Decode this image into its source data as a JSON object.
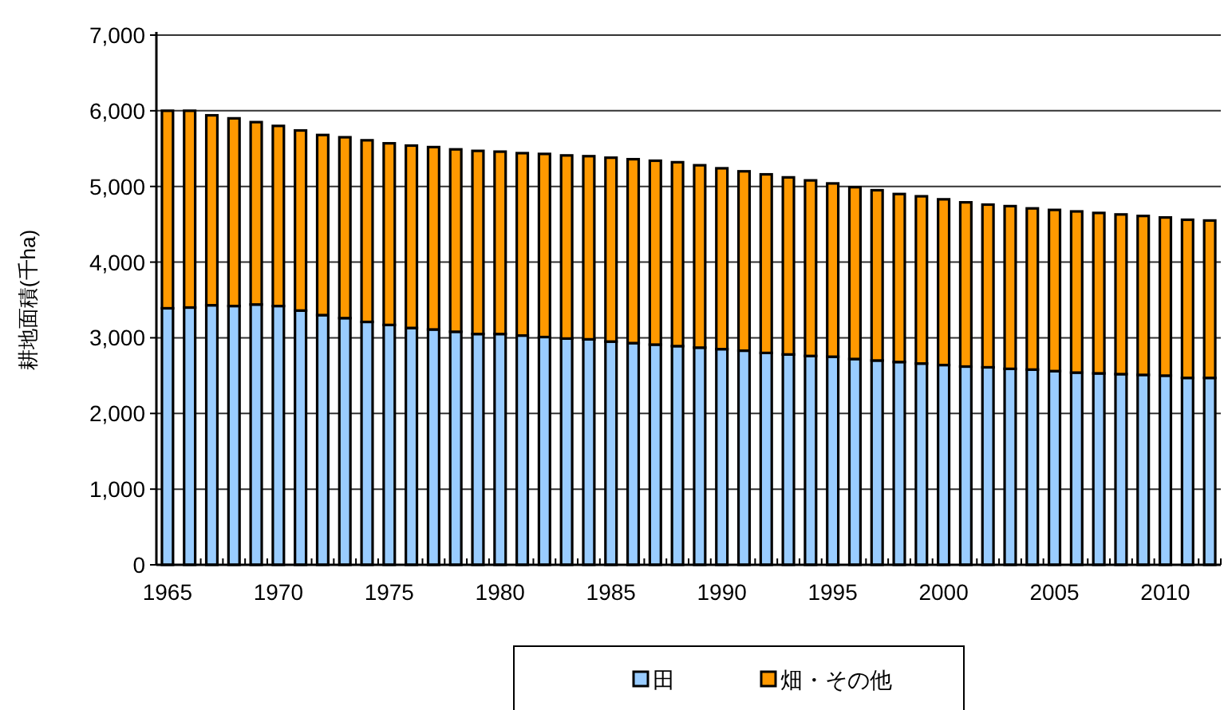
{
  "chart_data": {
    "type": "bar",
    "stacked": true,
    "ylabel": "耕地面積(千ha)",
    "categories": [
      "1965",
      null,
      null,
      null,
      null,
      "1970",
      null,
      null,
      null,
      null,
      "1975",
      null,
      null,
      null,
      null,
      "1980",
      null,
      null,
      null,
      null,
      "1985",
      null,
      null,
      null,
      null,
      "1990",
      null,
      null,
      null,
      null,
      "1995",
      null,
      null,
      null,
      null,
      "2000",
      null,
      null,
      null,
      null,
      "2005",
      null,
      null,
      null,
      null,
      "2010",
      null,
      null
    ],
    "series": [
      {
        "name": "田",
        "color": "#99ccff",
        "values": [
          3390,
          3400,
          3430,
          3420,
          3440,
          3420,
          3360,
          3300,
          3260,
          3210,
          3170,
          3130,
          3110,
          3080,
          3050,
          3050,
          3030,
          3010,
          2990,
          2980,
          2950,
          2930,
          2910,
          2890,
          2870,
          2850,
          2830,
          2800,
          2780,
          2760,
          2750,
          2720,
          2700,
          2680,
          2660,
          2640,
          2620,
          2610,
          2590,
          2580,
          2560,
          2540,
          2530,
          2520,
          2510,
          2500,
          2470,
          2470
        ]
      },
      {
        "name": "畑・その他",
        "color": "#ff9900",
        "values": [
          2610,
          2600,
          2510,
          2480,
          2410,
          2380,
          2380,
          2380,
          2390,
          2400,
          2400,
          2410,
          2410,
          2410,
          2420,
          2410,
          2410,
          2420,
          2420,
          2420,
          2430,
          2430,
          2430,
          2430,
          2410,
          2390,
          2370,
          2360,
          2340,
          2320,
          2290,
          2270,
          2250,
          2220,
          2210,
          2190,
          2170,
          2150,
          2150,
          2130,
          2130,
          2130,
          2120,
          2110,
          2100,
          2090,
          2090,
          2080
        ]
      }
    ],
    "ylim": [
      0,
      7000
    ],
    "yticks": [
      {
        "value": 0,
        "label": "0"
      },
      {
        "value": 1000,
        "label": "1,000"
      },
      {
        "value": 2000,
        "label": "2,000"
      },
      {
        "value": 3000,
        "label": "3,000"
      },
      {
        "value": 4000,
        "label": "4,000"
      },
      {
        "value": 5000,
        "label": "5,000"
      },
      {
        "value": 6000,
        "label": "6,000"
      },
      {
        "value": 7000,
        "label": "7,000"
      }
    ],
    "grid": "y",
    "legend": "bottom"
  }
}
